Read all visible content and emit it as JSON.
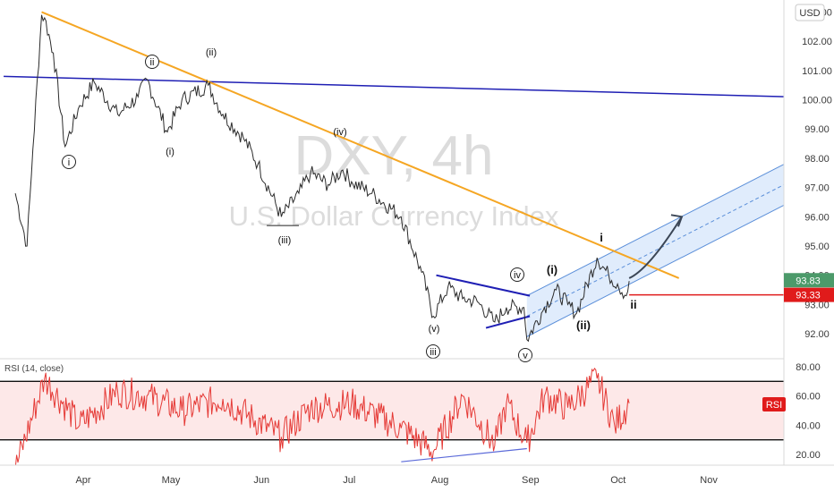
{
  "currency_button": "USD",
  "watermark": {
    "symbol": "DXY, 4h",
    "name": "U.S. Dollar Currency Index"
  },
  "price_axis_labels": [
    "103.00",
    "102.00",
    "101.00",
    "100.00",
    "99.00",
    "98.00",
    "97.00",
    "96.00",
    "95.00",
    "94.00",
    "93.00",
    "92.00"
  ],
  "price_tags": [
    {
      "value": 93.83,
      "label": "93.83",
      "color": "#4c9a6a"
    },
    {
      "value": 93.33,
      "label": "93.33",
      "color": "#e01b1b"
    }
  ],
  "rsi_axis_labels": [
    "80.00",
    "60.00",
    "40.00",
    "20.00"
  ],
  "rsi": {
    "title": "RSI (14, close)",
    "badge": "RSI",
    "band": [
      30,
      70
    ],
    "color": "#e53935",
    "band_fill": "#fde8e8"
  },
  "time_axis_labels": [
    "Apr",
    "May",
    "Jun",
    "Jul",
    "Aug",
    "Sep",
    "Oct",
    "Nov"
  ],
  "colors": {
    "price": "#2b2b2b",
    "resistance": "#f5a623",
    "horizontal": "#1f1fb4",
    "triangle": "#1f1fb4",
    "channel": "#5b8fd9",
    "channel_fill": "#dbe9fb",
    "support": "#e01b1b",
    "rsi_divergence": "#5b6ad9"
  },
  "wave_labels": [
    {
      "text": "ii",
      "style": "circle"
    },
    {
      "text": "(ii)",
      "style": "plain"
    },
    {
      "text": "i",
      "style": "circle"
    },
    {
      "text": "(i)",
      "style": "plain"
    },
    {
      "text": "(iv)",
      "style": "plain"
    },
    {
      "text": "(iii)",
      "style": "plain"
    },
    {
      "text": "(v)",
      "style": "plain"
    },
    {
      "text": "iii",
      "style": "circle"
    },
    {
      "text": "iv",
      "style": "circle"
    },
    {
      "text": "v",
      "style": "circle"
    },
    {
      "text": "(i)",
      "style": "bold"
    },
    {
      "text": "(ii)",
      "style": "bold"
    },
    {
      "text": "i",
      "style": "bold"
    },
    {
      "text": "ii",
      "style": "bold"
    }
  ],
  "chart_data": {
    "type": "line",
    "title": "DXY, 4h",
    "subtitle": "U.S. Dollar Currency Index",
    "timeframe": "4h",
    "ylim": [
      91.4,
      103.9
    ],
    "x_ticks": [
      "Apr",
      "May",
      "Jun",
      "Jul",
      "Aug",
      "Sep",
      "Oct",
      "Nov"
    ],
    "price_path": [
      [
        "Mar 10",
        96.8
      ],
      [
        "Mar 14",
        95.0
      ],
      [
        "Mar 16",
        98.3
      ],
      [
        "Mar 19",
        102.9
      ],
      [
        "Mar 20",
        102.8
      ],
      [
        "Mar 23",
        101.6
      ],
      [
        "Mar 27",
        98.4
      ],
      [
        "Apr 1",
        99.8
      ],
      [
        "Apr 6",
        100.6
      ],
      [
        "Apr 14",
        99.5
      ],
      [
        "Apr 21",
        100.1
      ],
      [
        "Apr 24",
        100.7
      ],
      [
        "May 1",
        98.9
      ],
      [
        "May 6",
        100.0
      ],
      [
        "May 15",
        100.5
      ],
      [
        "May 20",
        99.5
      ],
      [
        "May 27",
        98.7
      ],
      [
        "Jun 1",
        97.8
      ],
      [
        "Jun 9",
        96.0
      ],
      [
        "Jun 15",
        96.8
      ],
      [
        "Jun 19",
        97.5
      ],
      [
        "Jun 25",
        97.1
      ],
      [
        "Jun 30",
        97.6
      ],
      [
        "Jul 3",
        97.2
      ],
      [
        "Jul 10",
        96.8
      ],
      [
        "Jul 20",
        96.0
      ],
      [
        "Jul 27",
        94.1
      ],
      [
        "Jul 31",
        92.6
      ],
      [
        "Aug 5",
        93.6
      ],
      [
        "Aug 10",
        93.2
      ],
      [
        "Aug 15",
        93.1
      ],
      [
        "Aug 21",
        92.4
      ],
      [
        "Aug 25",
        92.9
      ],
      [
        "Aug 31",
        92.9
      ],
      [
        "Sep 1",
        91.8
      ],
      [
        "Sep 7",
        92.9
      ],
      [
        "Sep 11",
        93.5
      ],
      [
        "Sep 15",
        93.0
      ],
      [
        "Sep 18",
        92.7
      ],
      [
        "Sep 25",
        94.6
      ],
      [
        "Sep 29",
        94.0
      ],
      [
        "Oct 2",
        93.7
      ],
      [
        "Oct 5",
        93.3
      ],
      [
        "Oct 6",
        93.8
      ]
    ],
    "rsi_path": [
      [
        "Mar 10",
        10
      ],
      [
        "Mar 20",
        72
      ],
      [
        "Apr 1",
        40
      ],
      [
        "Apr 14",
        63
      ],
      [
        "Apr 24",
        60
      ],
      [
        "May 6",
        50
      ],
      [
        "May 20",
        58
      ],
      [
        "Jun 9",
        32
      ],
      [
        "Jun 19",
        52
      ],
      [
        "Jul 3",
        55
      ],
      [
        "Jul 20",
        38
      ],
      [
        "Jul 31",
        22
      ],
      [
        "Aug 10",
        60
      ],
      [
        "Aug 21",
        26
      ],
      [
        "Aug 25",
        55
      ],
      [
        "Sep 1",
        28
      ],
      [
        "Sep 7",
        60
      ],
      [
        "Sep 15",
        52
      ],
      [
        "Sep 25",
        72
      ],
      [
        "Oct 1",
        40
      ],
      [
        "Oct 6",
        55
      ]
    ],
    "drawings": {
      "resistance_line": [
        [
          "Mar 19",
          103.0
        ],
        [
          "Oct 23",
          93.9
        ]
      ],
      "horizontal_trendline": [
        [
          "Mar 6",
          100.8
        ],
        [
          "Nov 30",
          100.1
        ]
      ],
      "triangle_upper": [
        [
          "Aug 1",
          94.0
        ],
        [
          "Sep 2",
          93.3
        ]
      ],
      "triangle_lower": [
        [
          "Aug 18",
          92.2
        ],
        [
          "Sep 2",
          92.6
        ]
      ],
      "channel_upper": [
        [
          "Sep 1",
          93.3
        ],
        [
          "Nov 30",
          97.9
        ]
      ],
      "channel_lower": [
        [
          "Sep 1",
          91.9
        ],
        [
          "Nov 30",
          96.5
        ]
      ],
      "support_line": [
        [
          "Oct 6",
          93.33
        ],
        [
          "Nov 30",
          93.33
        ]
      ],
      "projection_arrow": [
        [
          "Oct 6",
          93.9
        ],
        [
          "Oct 24",
          96.0
        ]
      ],
      "rsi_divergence": [
        [
          "Jul 20",
          15
        ],
        [
          "Sep 1",
          24
        ]
      ]
    }
  }
}
